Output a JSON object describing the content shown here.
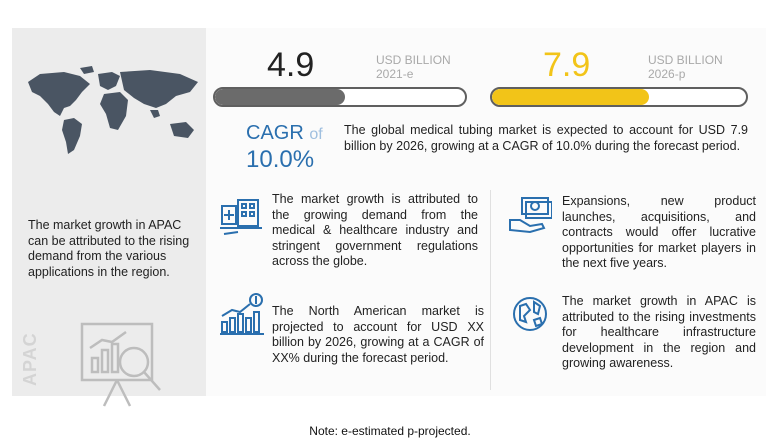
{
  "left_panel": {
    "apac_text": "The market growth in APAC can be attributed to the rising demand from the various applications in the region.",
    "watermark_label": "APAC",
    "map_icon": "world-map-icon",
    "analytics_icon": "magnifier-chart-icon"
  },
  "market": {
    "value_2021": "4.9",
    "unit_2021_line1": "USD BILLION",
    "unit_2021_line2": "2021-e",
    "value_2026": "7.9",
    "unit_2026_line1": "USD BILLION",
    "unit_2026_line2": "2026-p",
    "bar_2021_fill_fraction": 0.52,
    "bar_2026_fill_fraction": 0.62,
    "colors": {
      "bar_2021": "#6b6b6b",
      "bar_2026": "#f2c418",
      "cagr": "#2a6fae"
    }
  },
  "cagr": {
    "label": "CAGR",
    "of": "of",
    "value": "10.0%"
  },
  "summary": "The global medical tubing market is expected to account for USD 7.9 billion by 2026, growing at a CAGR of 10.0% during the forecast period.",
  "cards": [
    {
      "icon": "hospital-building-icon",
      "text": "The market growth is attributed to the growing demand from the medical & healthcare industry and stringent government regulations across the globe."
    },
    {
      "icon": "money-hand-icon",
      "text": "Expansions, new product launches, acquisitions, and contracts would offer lucrative opportunities for market players in the next five years."
    },
    {
      "icon": "dollar-growth-chart-icon",
      "text": "The North American market is projected to account for USD XX billion by 2026, growing at a CAGR of XX% during the forecast period."
    },
    {
      "icon": "globe-network-icon",
      "text": "The market growth in APAC is attributed to the rising investments for healthcare infrastructure development in the region and growing awareness."
    }
  ],
  "note": "Note: e-estimated p-projected."
}
